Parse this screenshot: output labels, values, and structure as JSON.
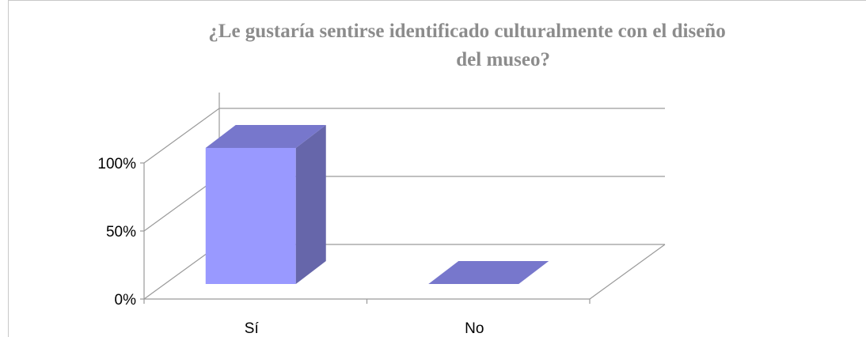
{
  "chart_data": {
    "type": "bar",
    "title_lines": [
      "¿Le gustaría sentirse identificado culturalmente con el diseño",
      "del museo?"
    ],
    "categories": [
      "Sí",
      "No"
    ],
    "values": [
      100,
      0
    ],
    "y_ticks": [
      "0%",
      "50%",
      "100%"
    ],
    "ylim": [
      0,
      100
    ],
    "three_d": true,
    "grid": true,
    "colors": {
      "front": "#9999ff",
      "side": "#6666aa",
      "top": "#7777cc",
      "title": "#8c8c8c",
      "grid": "#9a9a9a"
    }
  }
}
